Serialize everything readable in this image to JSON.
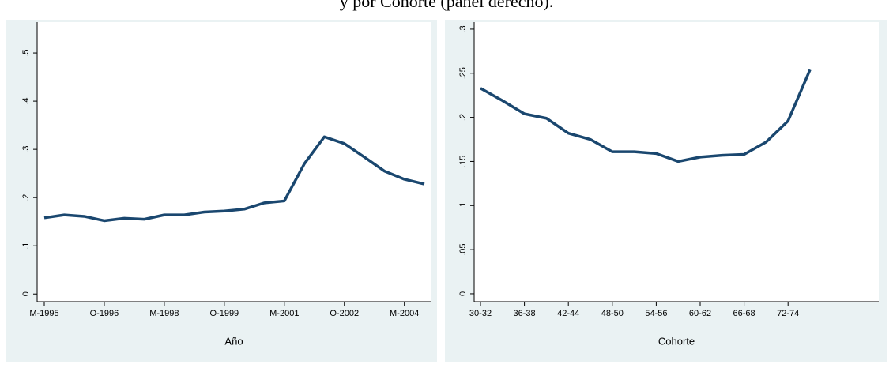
{
  "caption": "y por Cohorte (panel derecho).",
  "chart_data": [
    {
      "type": "line",
      "x_label": "Año",
      "categories": [
        "M-1995",
        null,
        null,
        "O-1996",
        null,
        null,
        "M-1998",
        null,
        null,
        "O-1999",
        null,
        null,
        "M-2001",
        null,
        null,
        "O-2002",
        null,
        null,
        "M-2004",
        null
      ],
      "series": [
        {
          "color": "#1a476f",
          "values": [
            0.158,
            0.164,
            0.161,
            0.152,
            0.157,
            0.155,
            0.164,
            0.164,
            0.17,
            0.172,
            0.176,
            0.189,
            0.193,
            0.27,
            0.326,
            0.312,
            0.284,
            0.255,
            0.238,
            0.228
          ]
        }
      ],
      "ylim": [
        -0.016,
        0.564
      ],
      "yticks": [
        0,
        {
          "value": 0.1,
          "label": ".1"
        },
        {
          "value": 0.2,
          "label": ".2"
        },
        {
          "value": 0.3,
          "label": ".3"
        },
        {
          "value": 0.4,
          "label": ".4"
        },
        {
          "value": 0.5,
          "label": ".5"
        }
      ]
    },
    {
      "type": "line",
      "x_label": "Cohorte",
      "categories": [
        "30-32",
        null,
        "36-38",
        null,
        "42-44",
        null,
        "48-50",
        null,
        "54-56",
        null,
        "60-62",
        null,
        "66-68",
        null,
        "72-74",
        null
      ],
      "series": [
        {
          "color": "#1a476f",
          "values": [
            0.233,
            0.219,
            0.204,
            0.199,
            0.182,
            0.175,
            0.161,
            0.161,
            0.159,
            0.15,
            0.155,
            0.157,
            0.158,
            0.172,
            0.196,
            0.254
          ]
        }
      ],
      "ylim": [
        -0.009,
        0.308
      ],
      "yticks": [
        0,
        {
          "value": 0.05,
          "label": ".05"
        },
        {
          "value": 0.1,
          "label": ".1"
        },
        {
          "value": 0.15,
          "label": ".15"
        },
        {
          "value": 0.2,
          "label": ".2"
        },
        {
          "value": 0.25,
          "label": ".25"
        },
        {
          "value": 0.3,
          "label": ".3"
        }
      ]
    }
  ]
}
